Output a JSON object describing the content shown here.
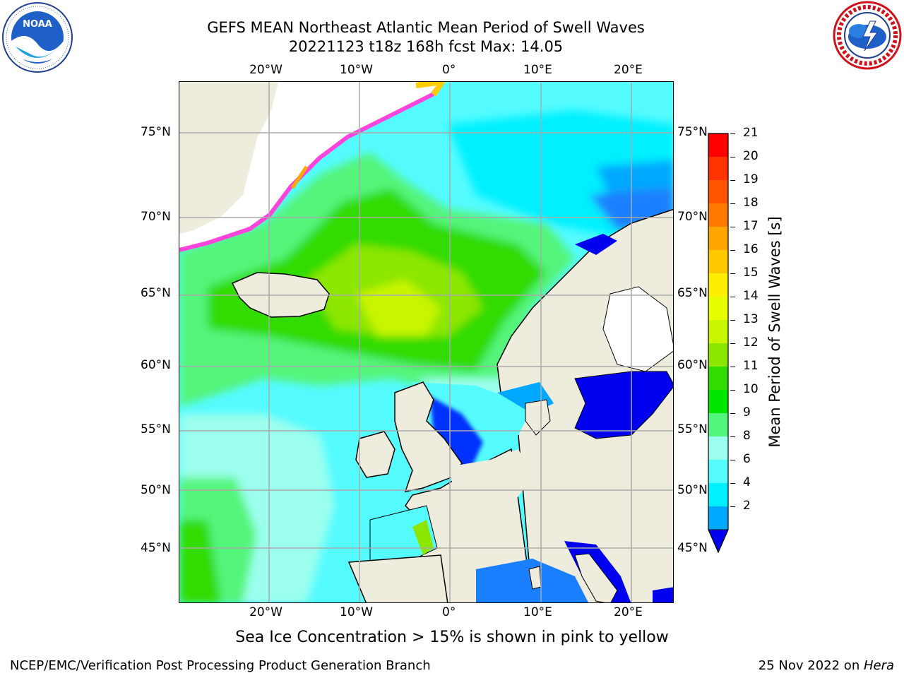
{
  "header": {
    "title_line1": "GEFS MEAN Northeast Atlantic Mean Period of Swell Waves",
    "title_line2": "20221123 t18z 168h fcst   Max: 14.05"
  },
  "logos": {
    "noaa_text": "NOAA",
    "noaa_ring": "NATIONAL OCEANIC AND ATMOSPHERIC ADMINISTRATION · U.S. DEPARTMENT OF COMMERCE",
    "nws_ring": "NATIONAL WEATHER SERVICE"
  },
  "map": {
    "lon_labels": [
      "20°W",
      "10°W",
      "0°",
      "10°E",
      "20°E"
    ],
    "lat_labels_left": [
      "75°N",
      "70°N",
      "65°N",
      "60°N",
      "55°N",
      "50°N",
      "45°N"
    ],
    "lat_labels_right": [
      "75°N",
      "70°N",
      "65°N",
      "60°N",
      "55°N",
      "50°N",
      "45°N"
    ]
  },
  "colorbar": {
    "title": "Mean Period of Swell Waves [s]",
    "ticks": [
      "21",
      "20",
      "19",
      "18",
      "17",
      "16",
      "15",
      "14",
      "13",
      "12",
      "11",
      "10",
      "9",
      "8",
      "6",
      "4",
      "2"
    ],
    "colors": [
      "#ff0000",
      "#ff3300",
      "#ff5500",
      "#ff7a00",
      "#ffa500",
      "#ffc800",
      "#ffee00",
      "#e5ff00",
      "#c8f500",
      "#8ce600",
      "#32dc00",
      "#00e600",
      "#54f57c",
      "#9cffee",
      "#54fbff",
      "#00f0ff",
      "#00a8ff"
    ],
    "extend_color": "#0000ee"
  },
  "notes": {
    "ice_note": "Sea Ice Concentration > 15% is shown in pink to yellow"
  },
  "footer": {
    "left": "NCEP/EMC/Verification Post Processing Product Generation Branch",
    "date": "25 Nov 2022 on ",
    "machine": "Hera"
  }
}
